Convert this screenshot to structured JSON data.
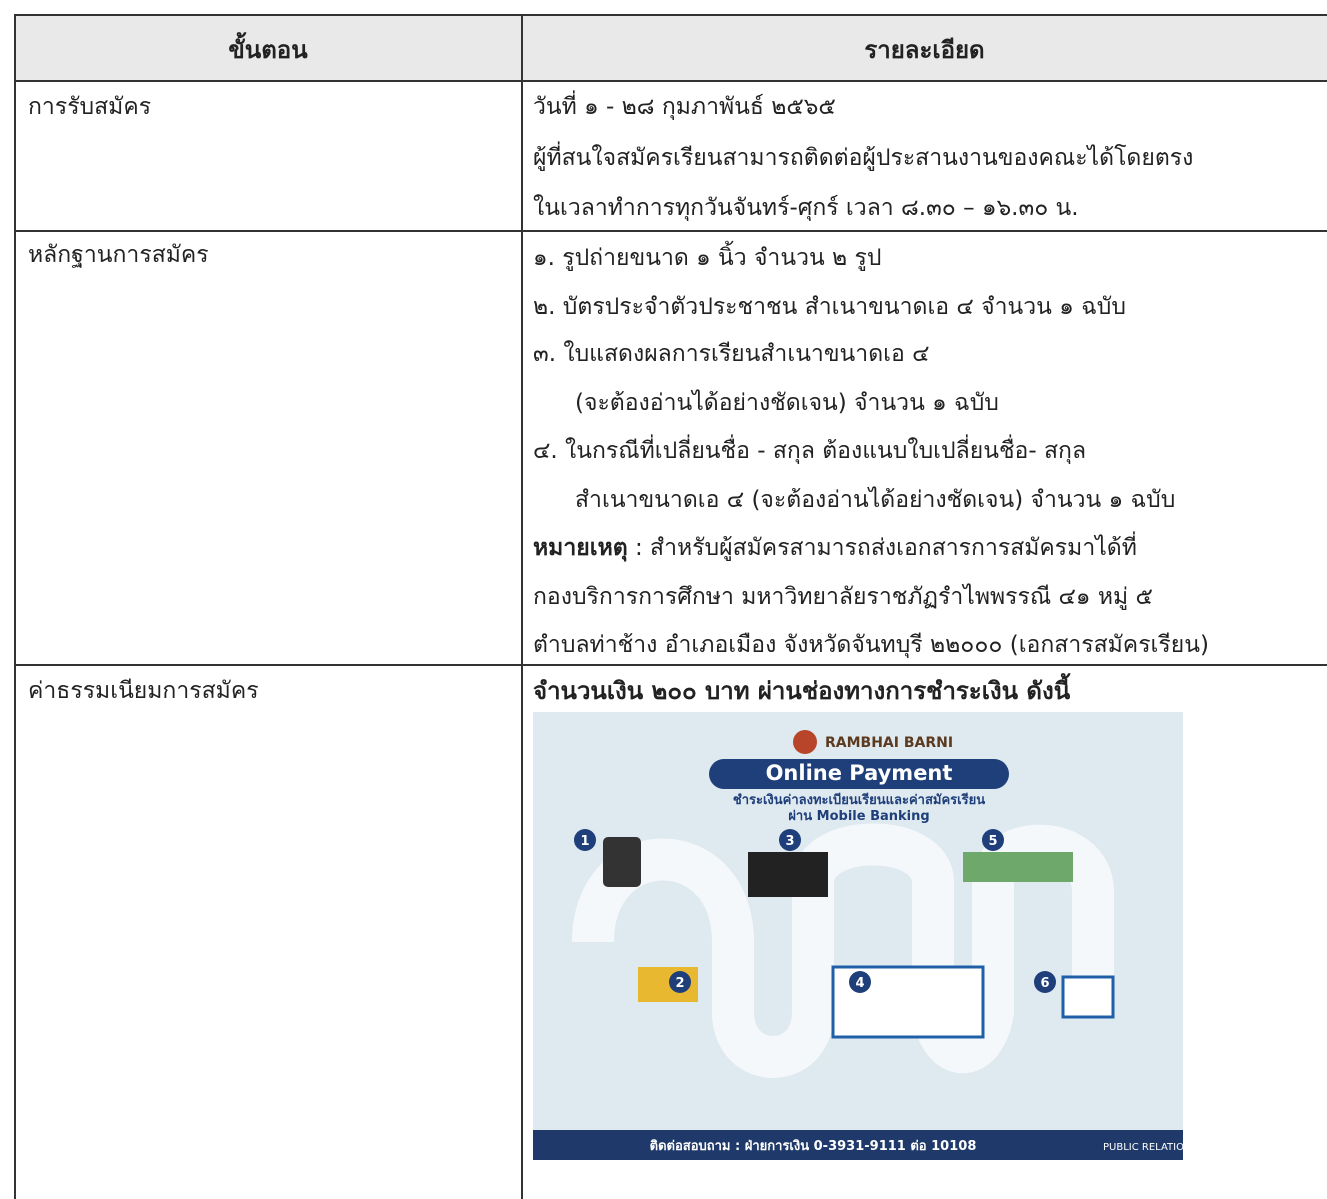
{
  "table": {
    "header": [
      "ขั้นตอน",
      "รายละเอียด"
    ],
    "rows": [
      {
        "step": "การรับสมัคร",
        "details": [
          "วันที่ ๑ - ๒๘ กุมภาพันธ์ ๒๕๖๕",
          "ผู้ที่สนใจสมัครเรียนสามารถติดต่อผู้ประสานงานของคณะได้โดยตรง",
          "ในเวลาทำการทุกวันจันทร์-ศุกร์ เวลา ๘.๓๐ – ๑๖.๓๐ น."
        ]
      },
      {
        "step": "หลักฐานการสมัคร",
        "details": [
          "๑. รูปถ่ายขนาด  ๑  นิ้ว  จำนวน  ๒  รูป",
          "๒. บัตรประจำตัวประชาชน สำเนาขนาดเอ ๔  จำนวน  ๑  ฉบับ",
          "๓. ใบแสดงผลการเรียนสำเนาขนาดเอ  ๔",
          "(จะต้องอ่านได้อย่างชัดเจน) จำนวน  ๑  ฉบับ",
          "๔. ในกรณีที่เปลี่ยนชื่อ - สกุล ต้องแนบใบเปลี่ยนชื่อ- สกุล",
          "สำเนาขนาดเอ ๔  (จะต้องอ่านได้อย่างชัดเจน) จำนวน  ๑ ฉบับ"
        ],
        "note": {
          "label": "หมายเหตุ",
          "text": " : สำหรับผู้สมัครสามารถส่งเอกสารการสมัครมาได้ที่",
          "lines": [
            "กองบริการการศึกษา มหาวิทยาลัยราชภัฏรำไพพรรณี ๔๑ หมู่ ๕",
            "ตำบลท่าช้าง อำเภอเมือง จังหวัดจันทบุรี ๒๒๐๐๐ (เอกสารสมัครเรียน)"
          ]
        }
      },
      {
        "step": "ค่าธรรมเนียมการสมัคร",
        "heading": "จำนวนเงิน ๒๐๐ บาท ผ่านช่องทางการชำระเงิน ดังนี้",
        "poster": {
          "brand": "RAMBHAI BARNI",
          "title": "Online Payment",
          "subtitle": "ชำระเงินค่าลงทะเบียนเรียนและค่าสมัครเรียน",
          "channel": "ผ่าน Mobile Banking",
          "steps": [
            "1",
            "2",
            "3",
            "4",
            "5",
            "6"
          ],
          "contact": "ติดต่อสอบถาม : ฝ่ายการเงิน 0-3931-9111 ต่อ 10108",
          "badge": "PUBLIC RELATION"
        }
      }
    ]
  }
}
